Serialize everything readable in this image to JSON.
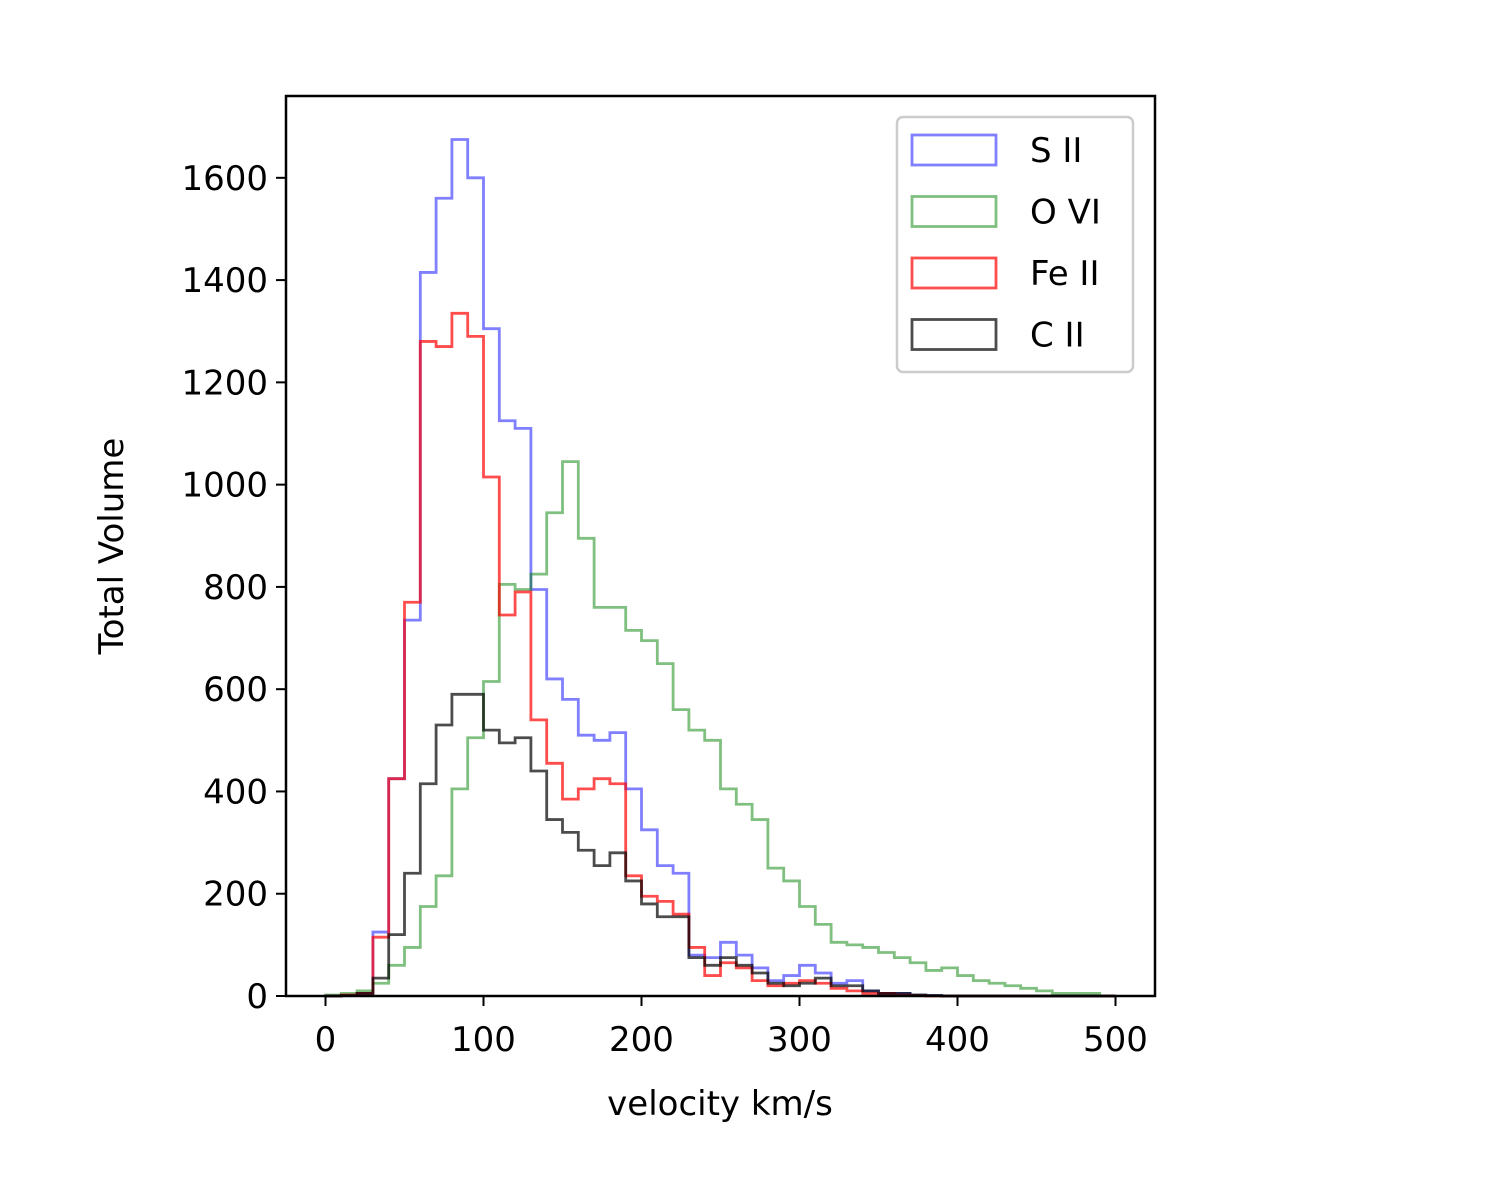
{
  "chart_data": {
    "type": "histogram",
    "title": "",
    "xlabel": "velocity km/s",
    "ylabel": "Total Volume",
    "xlim": [
      -25,
      525
    ],
    "ylim": [
      0,
      1760
    ],
    "xticks": [
      0,
      100,
      200,
      300,
      400,
      500
    ],
    "yticks": [
      0,
      200,
      400,
      600,
      800,
      1000,
      1200,
      1400,
      1600
    ],
    "grid": false,
    "legend_position": "top-right",
    "bin_edges": [
      0,
      10,
      20,
      30,
      40,
      50,
      60,
      70,
      80,
      90,
      100,
      110,
      120,
      130,
      140,
      150,
      160,
      170,
      180,
      190,
      200,
      210,
      220,
      230,
      240,
      250,
      260,
      270,
      280,
      290,
      300,
      310,
      320,
      330,
      340,
      350,
      360,
      370,
      380,
      390,
      400,
      410,
      420,
      430,
      440,
      450,
      460,
      470,
      480,
      490,
      500
    ],
    "series": [
      {
        "name": "S II",
        "color": "#0000ff",
        "values": [
          0,
          2,
          5,
          125,
          425,
          735,
          1415,
          1560,
          1675,
          1600,
          1305,
          1125,
          1110,
          795,
          620,
          580,
          510,
          500,
          515,
          405,
          325,
          255,
          240,
          80,
          75,
          105,
          80,
          55,
          30,
          40,
          60,
          45,
          25,
          30,
          10,
          5,
          5,
          2,
          1,
          0,
          0,
          0,
          0,
          0,
          0,
          0,
          0,
          0,
          0,
          0
        ]
      },
      {
        "name": "O VI",
        "color": "#008000",
        "values": [
          2,
          5,
          10,
          25,
          60,
          95,
          175,
          235,
          405,
          505,
          615,
          805,
          795,
          825,
          945,
          1045,
          895,
          760,
          760,
          715,
          695,
          650,
          560,
          520,
          500,
          405,
          375,
          345,
          250,
          225,
          175,
          140,
          105,
          100,
          95,
          85,
          75,
          65,
          50,
          55,
          40,
          30,
          25,
          20,
          15,
          10,
          5,
          5,
          5,
          0
        ]
      },
      {
        "name": "Fe II",
        "color": "#ff0000",
        "values": [
          0,
          2,
          5,
          115,
          425,
          770,
          1280,
          1270,
          1335,
          1290,
          1015,
          745,
          790,
          540,
          455,
          385,
          405,
          425,
          415,
          235,
          195,
          185,
          160,
          95,
          40,
          65,
          55,
          30,
          20,
          25,
          30,
          25,
          15,
          10,
          5,
          5,
          2,
          1,
          0,
          0,
          0,
          0,
          0,
          0,
          0,
          0,
          0,
          0,
          0,
          0
        ]
      },
      {
        "name": "C II",
        "color": "#000000",
        "values": [
          0,
          1,
          5,
          35,
          120,
          240,
          415,
          530,
          590,
          590,
          520,
          495,
          505,
          440,
          345,
          320,
          285,
          255,
          280,
          225,
          180,
          155,
          155,
          75,
          60,
          75,
          60,
          45,
          25,
          20,
          25,
          35,
          20,
          20,
          10,
          5,
          5,
          2,
          1,
          0,
          0,
          0,
          0,
          0,
          0,
          0,
          0,
          0,
          0,
          0
        ]
      }
    ]
  }
}
